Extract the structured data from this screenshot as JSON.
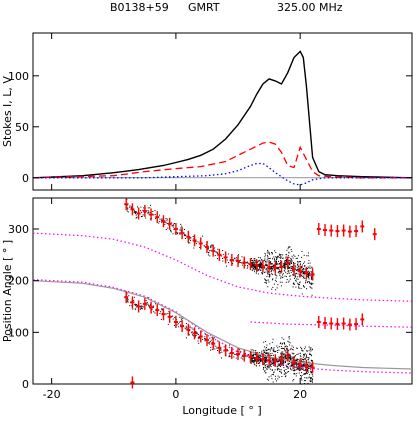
{
  "header": {
    "source": "B0138+59",
    "telescope": "GMRT",
    "frequency": "325.00 MHz"
  },
  "colors": {
    "stokes_I": "#000000",
    "linear_L": "#ff0000",
    "circular_V": "#0000ff",
    "pa_data": "#ff0000",
    "rvm_fit": "#ff00ff",
    "rvm_gray": "#999999",
    "single_pulse": "#000000"
  },
  "chart_data": [
    {
      "type": "line",
      "panel": "profile",
      "ylabel": "Stokes I, L, V",
      "xlim": [
        -23,
        38
      ],
      "ylim": [
        -12,
        142
      ],
      "y_ticks": [
        0,
        50,
        100
      ],
      "grid": false,
      "series": [
        {
          "key": "I",
          "style": "solid",
          "x": [
            -23,
            -15,
            -10,
            -6,
            -2,
            0,
            2,
            4,
            6,
            8,
            10,
            12,
            13,
            14,
            15,
            16,
            17,
            18,
            19,
            20,
            20.5,
            21,
            21.5,
            22,
            23,
            24,
            26,
            30,
            38
          ],
          "y": [
            0,
            2,
            5,
            8,
            12,
            15,
            18,
            22,
            28,
            38,
            52,
            70,
            82,
            92,
            97,
            95,
            92,
            103,
            118,
            124,
            118,
            90,
            55,
            20,
            6,
            3,
            2,
            1,
            0
          ]
        },
        {
          "key": "L",
          "style": "dashed",
          "x": [
            -23,
            -10,
            -5,
            0,
            4,
            8,
            10,
            12,
            14,
            15,
            16,
            17,
            18,
            19,
            20,
            21,
            22,
            23,
            25,
            30,
            38
          ],
          "y": [
            0,
            2,
            6,
            9,
            11,
            16,
            22,
            28,
            34,
            35,
            33,
            25,
            12,
            10,
            30,
            18,
            6,
            2,
            1,
            0,
            0
          ]
        },
        {
          "key": "V",
          "style": "dotted",
          "x": [
            -23,
            -5,
            0,
            5,
            8,
            10,
            12,
            13,
            14,
            15,
            16,
            17,
            18,
            19,
            20,
            21,
            22,
            24,
            30,
            38
          ],
          "y": [
            0,
            0,
            1,
            2,
            4,
            7,
            12,
            14,
            14,
            10,
            5,
            1,
            -3,
            -6,
            -7,
            -5,
            -2,
            0,
            0,
            0
          ]
        }
      ]
    },
    {
      "type": "scatter",
      "panel": "position_angle",
      "xlabel": "Longitude [ ° ]",
      "ylabel": "Position Angle [ ° ]",
      "xlim": [
        -23,
        38
      ],
      "ylim": [
        0,
        360
      ],
      "x_ticks": [
        -20,
        0,
        20
      ],
      "y_ticks": [
        0,
        100,
        200,
        300
      ],
      "grid": false,
      "series": [
        {
          "key": "pa_lower",
          "style": "errorbar",
          "x": [
            -8,
            -7,
            -6,
            -5,
            -4,
            -3,
            -2,
            -1,
            0,
            1,
            2,
            3,
            4,
            5,
            6,
            7,
            8,
            9,
            10,
            11,
            12,
            13,
            14,
            15,
            16,
            17,
            18,
            19,
            20,
            21,
            22
          ],
          "y": [
            168,
            158,
            150,
            155,
            148,
            143,
            135,
            130,
            120,
            112,
            105,
            98,
            92,
            85,
            78,
            70,
            65,
            60,
            58,
            55,
            52,
            50,
            48,
            46,
            45,
            47,
            55,
            42,
            38,
            35,
            32
          ]
        },
        {
          "key": "pa_upper",
          "style": "errorbar",
          "x": [
            -8,
            -7,
            -6,
            -5,
            -4,
            -3,
            -2,
            -1,
            0,
            1,
            2,
            3,
            4,
            5,
            6,
            7,
            8,
            9,
            10,
            11,
            12,
            13,
            14,
            15,
            16,
            17,
            18,
            19,
            20,
            21,
            22
          ],
          "y": [
            348,
            338,
            330,
            335,
            328,
            323,
            315,
            310,
            300,
            292,
            285,
            278,
            272,
            265,
            258,
            250,
            245,
            240,
            238,
            235,
            232,
            230,
            228,
            226,
            225,
            227,
            235,
            222,
            218,
            215,
            212
          ]
        },
        {
          "key": "pa_outer_upper",
          "style": "errorbar",
          "x": [
            23,
            24,
            25,
            26,
            27,
            28,
            29,
            30,
            32
          ],
          "y": [
            300,
            298,
            297,
            296,
            297,
            295,
            296,
            305,
            290
          ]
        },
        {
          "key": "pa_outer_lower",
          "style": "errorbar",
          "x": [
            23,
            24,
            25,
            26,
            27,
            28,
            29,
            30
          ],
          "y": [
            120,
            118,
            117,
            116,
            117,
            115,
            116,
            125
          ]
        },
        {
          "key": "pa_isolated",
          "style": "errorbar",
          "x": [
            -7
          ],
          "y": [
            3
          ]
        },
        {
          "key": "rvm_upper",
          "style": "dotted",
          "x": [
            -23,
            -15,
            -10,
            -5,
            0,
            5,
            10,
            15,
            20,
            25,
            30,
            38
          ],
          "y": [
            292,
            287,
            280,
            265,
            240,
            210,
            188,
            176,
            170,
            166,
            163,
            160
          ]
        },
        {
          "key": "rvm_lower",
          "style": "dotted",
          "x": [
            -23,
            -15,
            -10,
            -5,
            0,
            5,
            10,
            15,
            20,
            25,
            30,
            38
          ],
          "y": [
            202,
            197,
            187,
            170,
            140,
            95,
            62,
            42,
            32,
            27,
            24,
            21
          ]
        },
        {
          "key": "rvm_lower_top",
          "style": "dotted",
          "x": [
            12,
            18,
            25,
            30,
            38
          ],
          "y": [
            120,
            116,
            114,
            112,
            110
          ]
        },
        {
          "key": "rvm_gray",
          "style": "solid",
          "x": [
            -23,
            -15,
            -10,
            -5,
            0,
            5,
            10,
            15,
            20,
            25,
            30,
            38
          ],
          "y": [
            200,
            195,
            185,
            168,
            138,
            100,
            70,
            52,
            42,
            36,
            32,
            29
          ]
        }
      ]
    }
  ]
}
